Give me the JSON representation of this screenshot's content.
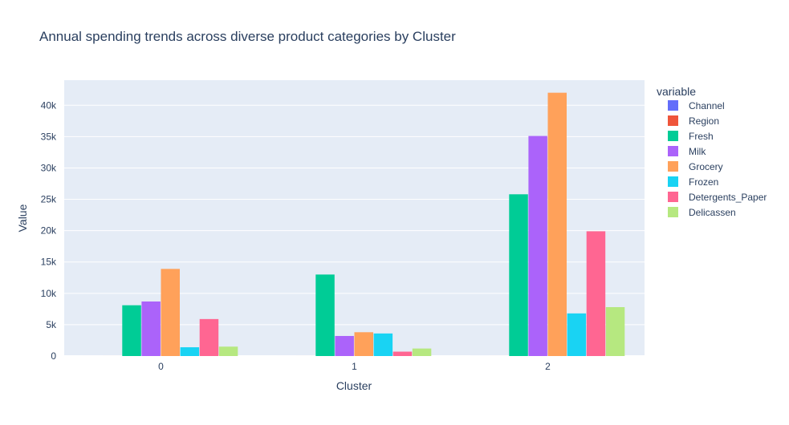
{
  "chart_data": {
    "type": "bar",
    "title": "Annual spending trends across diverse product categories by Cluster",
    "xlabel": "Cluster",
    "ylabel": "Value",
    "categories": [
      "0",
      "1",
      "2"
    ],
    "ylim": [
      0,
      44000
    ],
    "yticks": [
      0,
      5000,
      10000,
      15000,
      20000,
      25000,
      30000,
      35000,
      40000
    ],
    "ytick_labels": [
      "0",
      "5k",
      "10k",
      "15k",
      "20k",
      "25k",
      "30k",
      "35k",
      "40k"
    ],
    "legend_title": "variable",
    "legend_position": "right",
    "grid": true,
    "series": [
      {
        "name": "Channel",
        "color": "#636efa",
        "values": [
          1.1,
          1.3,
          2.0
        ]
      },
      {
        "name": "Region",
        "color": "#EF553B",
        "values": [
          2.5,
          2.5,
          2.6
        ]
      },
      {
        "name": "Fresh",
        "color": "#00cc96",
        "values": [
          8100,
          13000,
          25800
        ]
      },
      {
        "name": "Milk",
        "color": "#ab63fa",
        "values": [
          8700,
          3200,
          35100
        ]
      },
      {
        "name": "Grocery",
        "color": "#FFA15A",
        "values": [
          13900,
          3800,
          42000
        ]
      },
      {
        "name": "Frozen",
        "color": "#19d3f3",
        "values": [
          1400,
          3600,
          6800
        ]
      },
      {
        "name": "Detergents_Paper",
        "color": "#FF6692",
        "values": [
          5900,
          700,
          19900
        ]
      },
      {
        "name": "Delicassen",
        "color": "#B6E880",
        "values": [
          1500,
          1200,
          7800
        ]
      }
    ]
  }
}
